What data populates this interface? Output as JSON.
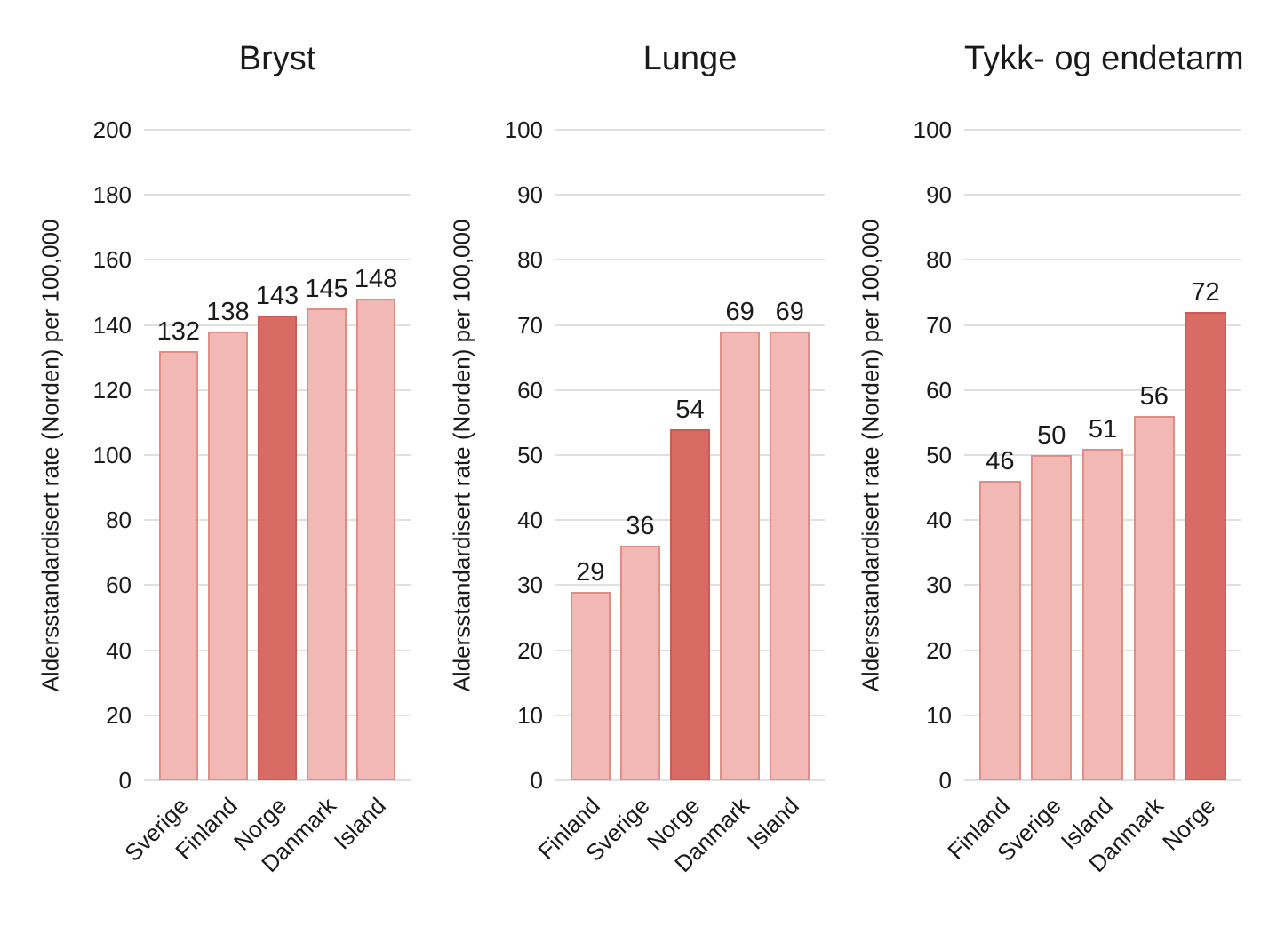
{
  "figure": {
    "kind": "three-panel bar chart figure",
    "background": "#ffffff"
  },
  "colors": {
    "bar_fill": "#f1b8b4",
    "bar_border": "#df8d87",
    "highlight_fill": "#d96b65",
    "highlight_border": "#cf5a54",
    "grid_line": "#e0e0e0",
    "text": "#1a1a1a"
  },
  "chart_data": [
    {
      "type": "bar",
      "title": "Bryst",
      "ylabel": "Aldersstandardisert rate (Norden) per 100,000",
      "categories": [
        "Sverige",
        "Finland",
        "Norge",
        "Danmark",
        "Island"
      ],
      "values": [
        132,
        138,
        143,
        145,
        148
      ],
      "value_labels": [
        "132",
        "138",
        "143",
        "145",
        "148"
      ],
      "highlight_category": "Norge",
      "ylim": [
        0,
        200
      ],
      "ytick_step": 20,
      "yticks": [
        0,
        20,
        40,
        60,
        80,
        100,
        120,
        140,
        160,
        180,
        200
      ],
      "grid": true,
      "legend": "none"
    },
    {
      "type": "bar",
      "title": "Lunge",
      "ylabel": "Aldersstandardisert rate (Norden) per 100,000",
      "categories": [
        "Finland",
        "Sverige",
        "Norge",
        "Danmark",
        "Island"
      ],
      "values": [
        29,
        36,
        54,
        69,
        69
      ],
      "value_labels": [
        "29",
        "36",
        "54",
        "69",
        "69"
      ],
      "highlight_category": "Norge",
      "ylim": [
        0,
        100
      ],
      "ytick_step": 10,
      "yticks": [
        0,
        10,
        20,
        30,
        40,
        50,
        60,
        70,
        80,
        90,
        100
      ],
      "grid": true,
      "legend": "none"
    },
    {
      "type": "bar",
      "title": "Tykk- og endetarm",
      "ylabel": "Aldersstandardisert rate (Norden) per 100,000",
      "categories": [
        "Finland",
        "Sverige",
        "Island",
        "Danmark",
        "Norge"
      ],
      "values": [
        46,
        50,
        51,
        56,
        72
      ],
      "value_labels": [
        "46",
        "50",
        "51",
        "56",
        "72"
      ],
      "highlight_category": "Norge",
      "ylim": [
        0,
        100
      ],
      "ytick_step": 10,
      "yticks": [
        0,
        10,
        20,
        30,
        40,
        50,
        60,
        70,
        80,
        90,
        100
      ],
      "grid": true,
      "legend": "none"
    }
  ]
}
